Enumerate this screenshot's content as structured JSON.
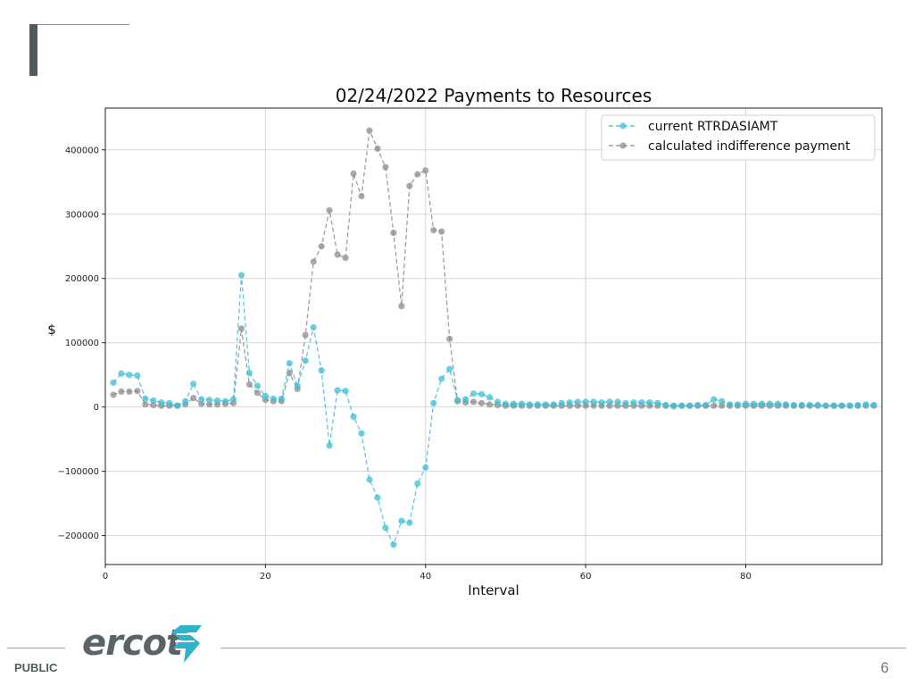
{
  "slide": {
    "classification": "PUBLIC",
    "page_number": "6",
    "logo_text": "ercot"
  },
  "colors": {
    "series_a": "#3fbfd3",
    "series_b": "#8e8e8e",
    "grid": "#d6d6d6",
    "logo_accent": "#2eb3c9",
    "logo_text": "#5a6468"
  },
  "chart_data": {
    "type": "line",
    "title": "02/24/2022 Payments to Resources",
    "xlabel": "Interval",
    "ylabel": "$",
    "xlim": [
      0,
      97
    ],
    "ylim": [
      -245000,
      465000
    ],
    "x_ticks": [
      0,
      20,
      40,
      60,
      80
    ],
    "x_tick_labels": [
      "0",
      "20",
      "40",
      "60",
      "80"
    ],
    "y_ticks": [
      -200000,
      -100000,
      0,
      100000,
      200000,
      300000,
      400000
    ],
    "y_tick_labels": [
      "−200000",
      "−100000",
      "0",
      "100000",
      "200000",
      "300000",
      "400000"
    ],
    "grid": true,
    "legend_position": "top-right",
    "line_style": "dashed",
    "marker": "circle",
    "x": [
      1,
      2,
      3,
      4,
      5,
      6,
      7,
      8,
      9,
      10,
      11,
      12,
      13,
      14,
      15,
      16,
      17,
      18,
      19,
      20,
      21,
      22,
      23,
      24,
      25,
      26,
      27,
      28,
      29,
      30,
      31,
      32,
      33,
      34,
      35,
      36,
      37,
      38,
      39,
      40,
      41,
      42,
      43,
      44,
      45,
      46,
      47,
      48,
      49,
      50,
      51,
      52,
      53,
      54,
      55,
      56,
      57,
      58,
      59,
      60,
      61,
      62,
      63,
      64,
      65,
      66,
      67,
      68,
      69,
      70,
      71,
      72,
      73,
      74,
      75,
      76,
      77,
      78,
      79,
      80,
      81,
      82,
      83,
      84,
      85,
      86,
      87,
      88,
      89,
      90,
      91,
      92,
      93,
      94,
      95,
      96
    ],
    "series": [
      {
        "name": "current RTRDASIAMT",
        "color": "#3fbfd3",
        "values": [
          38000,
          52000,
          50000,
          49000,
          13000,
          10000,
          7000,
          6000,
          2000,
          9000,
          36000,
          12000,
          11000,
          10000,
          9000,
          12000,
          205000,
          53000,
          33000,
          17000,
          13000,
          13000,
          68000,
          33000,
          72000,
          124000,
          57000,
          -60000,
          26000,
          25000,
          -15000,
          -41000,
          -113000,
          -141000,
          -188000,
          -214000,
          -177000,
          -180000,
          -119000,
          -94000,
          6000,
          44000,
          59000,
          11000,
          12000,
          21000,
          20000,
          15000,
          8000,
          5000,
          5000,
          5000,
          4000,
          4000,
          4000,
          4000,
          6000,
          7000,
          8000,
          8000,
          8000,
          7000,
          8000,
          8000,
          6000,
          7000,
          7000,
          7000,
          6000,
          3000,
          1000,
          2000,
          2000,
          3000,
          3000,
          12000,
          9000,
          4000,
          4000,
          5000,
          5000,
          5000,
          5000,
          5000,
          4000,
          3000,
          3000,
          3000,
          3000,
          2000,
          2000,
          2000,
          2000,
          3000,
          4000,
          3000
        ]
      },
      {
        "name": "calculated indifference payment",
        "color": "#8e8e8e",
        "values": [
          19000,
          24000,
          24000,
          25000,
          4000,
          3000,
          2000,
          2000,
          2000,
          4000,
          14000,
          5000,
          4000,
          4000,
          5000,
          6000,
          122000,
          35000,
          22000,
          11000,
          9000,
          9000,
          53000,
          28000,
          112000,
          226000,
          250000,
          306000,
          237000,
          232000,
          363000,
          328000,
          430000,
          402000,
          373000,
          271000,
          157000,
          344000,
          362000,
          368000,
          275000,
          273000,
          106000,
          9000,
          7000,
          8000,
          6000,
          4000,
          3000,
          2000,
          2000,
          2000,
          2000,
          2000,
          2000,
          2000,
          2000,
          2000,
          2000,
          2000,
          2000,
          2000,
          2000,
          2000,
          2000,
          2000,
          2000,
          2000,
          2000,
          2000,
          2000,
          2000,
          2000,
          2000,
          2000,
          2000,
          2000,
          2000,
          2000,
          2000,
          2000,
          2000,
          2000,
          2000,
          2000,
          2000,
          2000,
          2000,
          2000,
          2000,
          2000,
          2000,
          2000,
          2000,
          2000,
          2000
        ]
      }
    ]
  }
}
